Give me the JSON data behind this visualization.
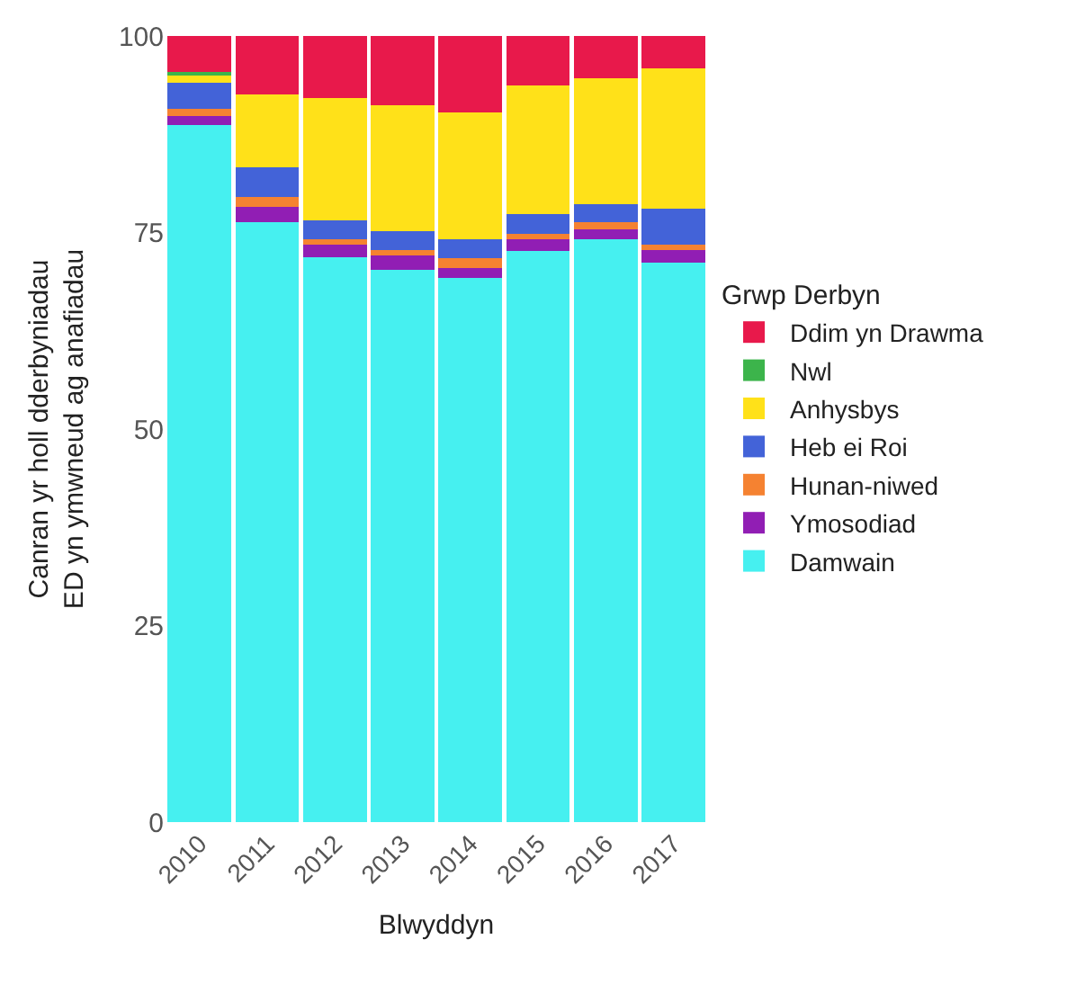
{
  "chart_data": {
    "type": "bar",
    "stacked": true,
    "xlabel": "Blwyddyn",
    "ylabel": "Canran yr holl dderbyniadau\nED yn ymwneud ag anafiadau",
    "legend_title": "Grwp Derbyn",
    "legend": "right",
    "grid": false,
    "categories": [
      "2010",
      "2011",
      "2012",
      "2013",
      "2014",
      "2015",
      "2016",
      "2017"
    ],
    "ylim": [
      0,
      100
    ],
    "yticks": [
      0,
      25,
      50,
      75,
      100
    ],
    "series": [
      {
        "name": "Damwain",
        "color": "#46f0f0",
        "values": [
          88.7,
          76.3,
          71.9,
          70.3,
          69.2,
          72.6,
          74.1,
          71.2
        ]
      },
      {
        "name": "Ymosodiad",
        "color": "#911eb4",
        "values": [
          1.1,
          2.0,
          1.6,
          1.8,
          1.3,
          1.5,
          1.3,
          1.6
        ]
      },
      {
        "name": "Hunan-niwed",
        "color": "#f58231",
        "values": [
          0.9,
          1.2,
          0.6,
          0.7,
          1.2,
          0.7,
          0.9,
          0.7
        ]
      },
      {
        "name": "Heb ei Roi",
        "color": "#4363d8",
        "values": [
          3.4,
          3.8,
          2.5,
          2.4,
          2.4,
          2.5,
          2.3,
          4.5
        ]
      },
      {
        "name": "Anhysbys",
        "color": "#ffe119",
        "values": [
          1.0,
          9.3,
          15.5,
          16.0,
          16.2,
          16.4,
          16.0,
          17.9
        ]
      },
      {
        "name": "Nwl",
        "color": "#3cb44b",
        "values": [
          0.3,
          0,
          0,
          0,
          0,
          0,
          0,
          0
        ]
      },
      {
        "name": "Ddim yn Drawma",
        "color": "#e8194b",
        "values": [
          4.6,
          7.4,
          7.9,
          8.8,
          9.7,
          6.3,
          5.4,
          4.1
        ]
      }
    ]
  }
}
